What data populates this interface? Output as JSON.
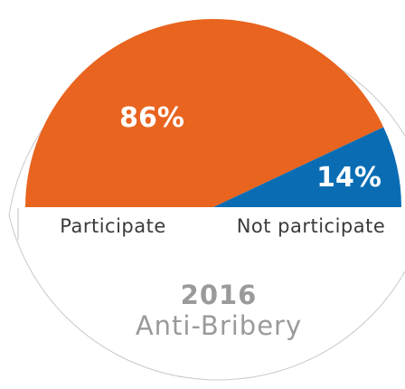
{
  "chart_data": {
    "type": "pie",
    "categories": [
      "Participate",
      "Not participate"
    ],
    "values": [
      86,
      14
    ],
    "value_labels": [
      "86%",
      "14%"
    ],
    "colors": [
      "#E8641F",
      "#0A6DB4"
    ],
    "year": "2016",
    "topic": "Anti-Bribery"
  }
}
